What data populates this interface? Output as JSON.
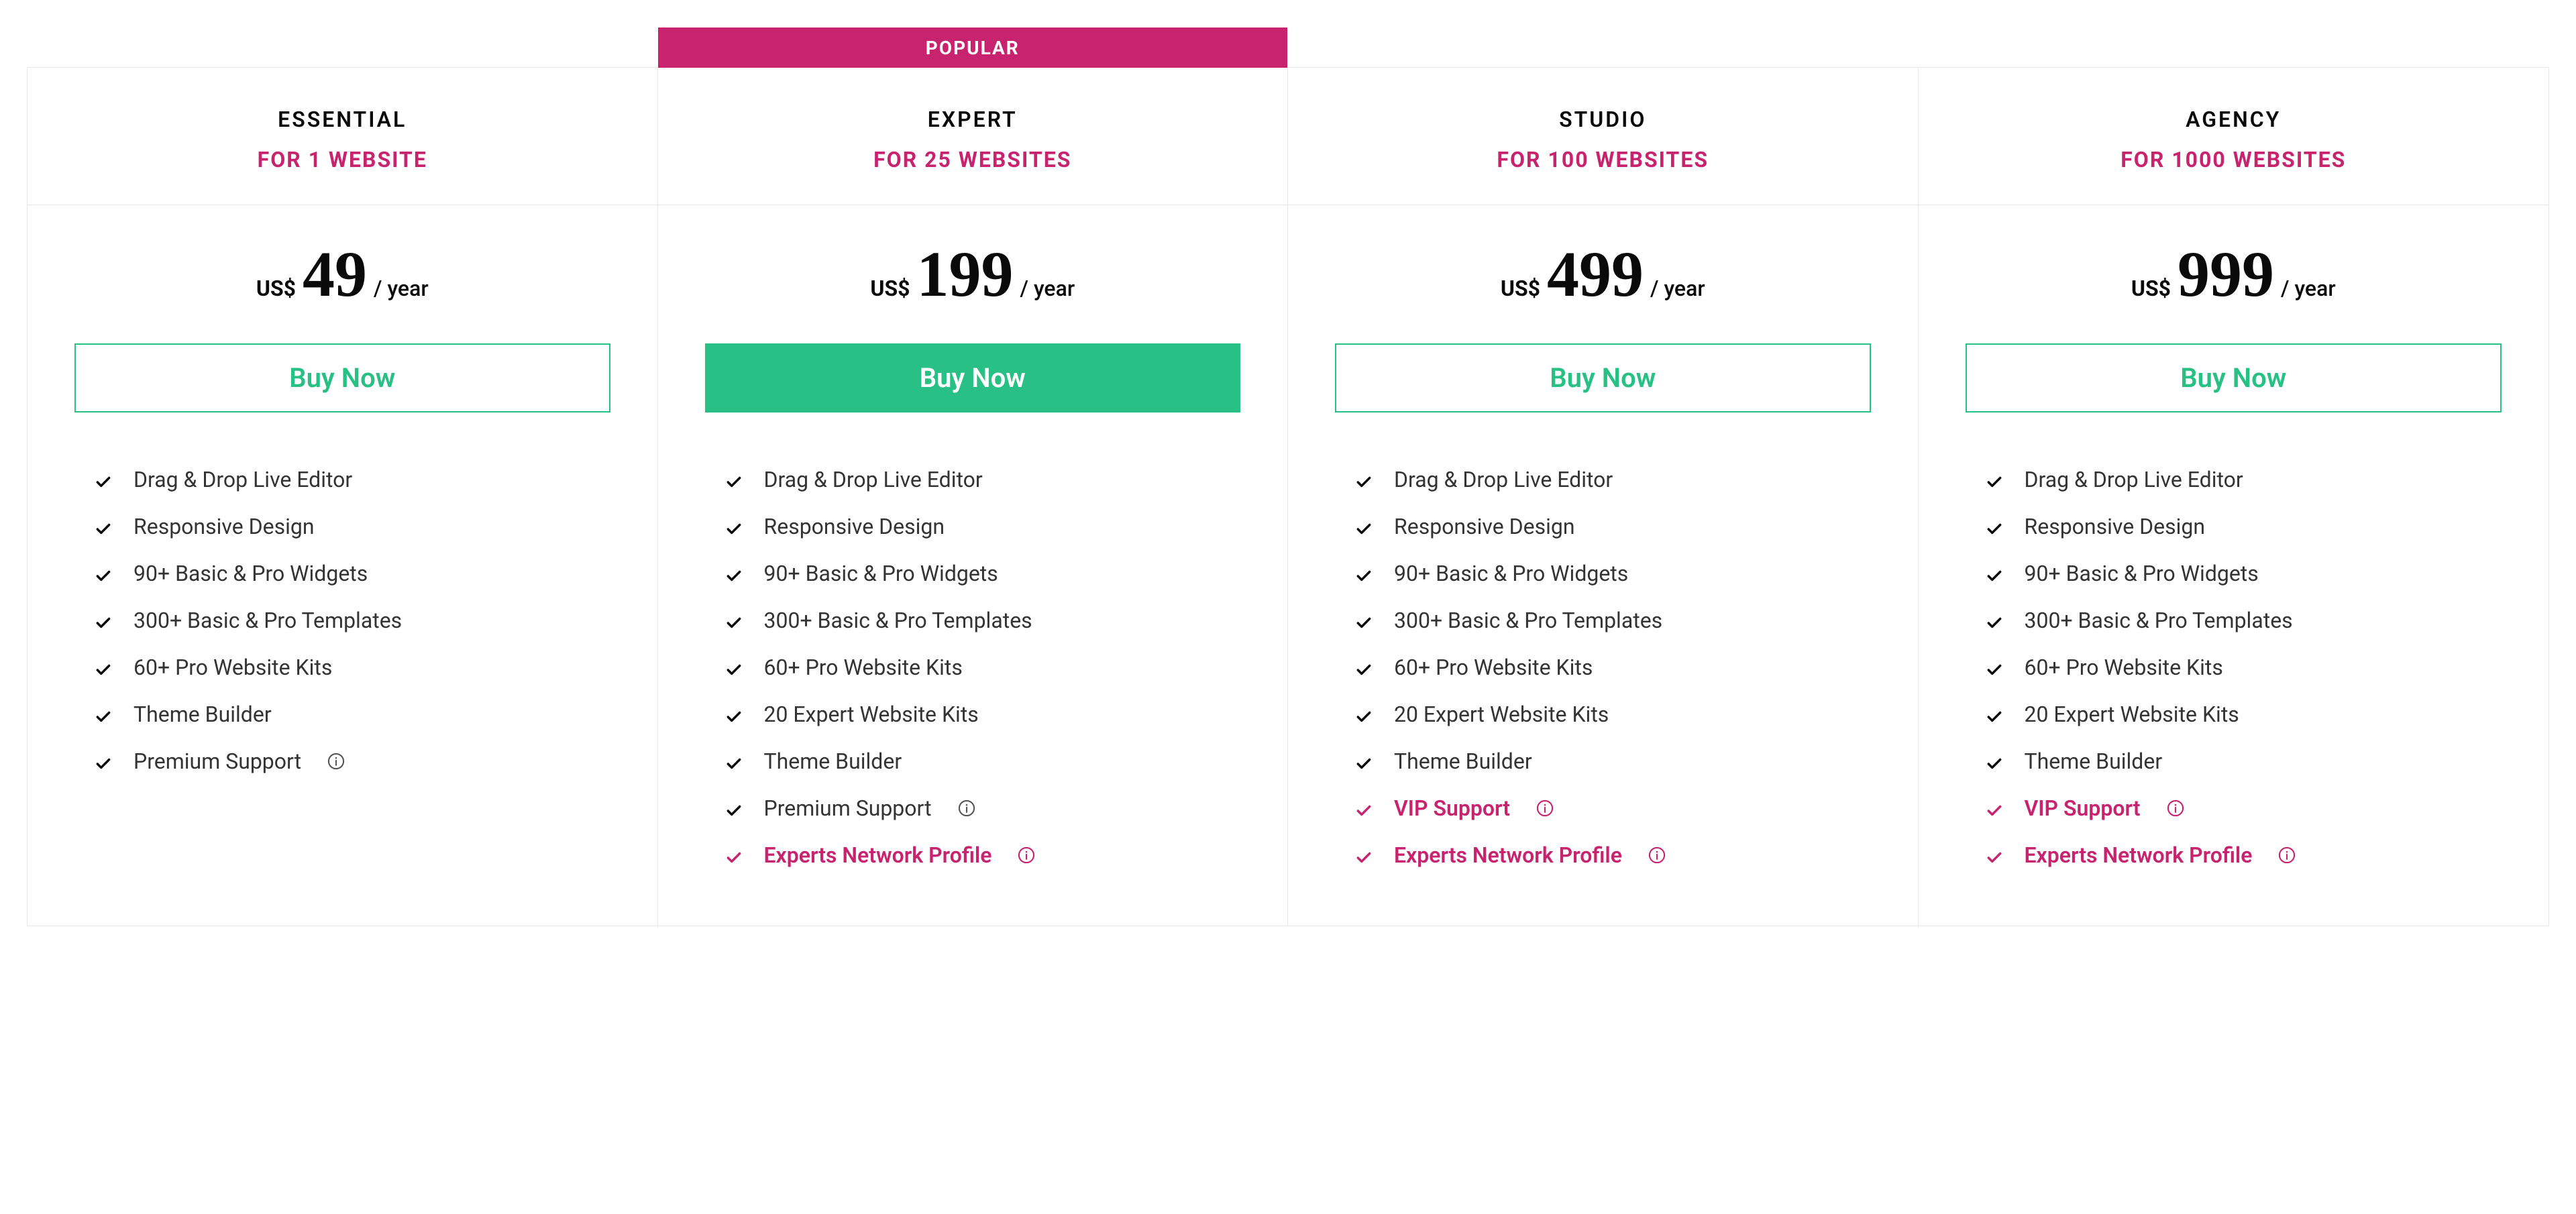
{
  "colors": {
    "accent": "#c7236f",
    "green": "#28c084",
    "border": "#e8e8e8",
    "text": "#333333",
    "dark": "#0a0a0a"
  },
  "popular_label": "POPULAR",
  "popular_index": 1,
  "currency": "US$",
  "period": "/ year",
  "buy_label": "Buy Now",
  "plans": [
    {
      "name": "ESSENTIAL",
      "subtitle": "FOR 1 WEBSITE",
      "price": "49",
      "features": [
        {
          "label": "Drag & Drop Live Editor",
          "highlight": false,
          "info": false
        },
        {
          "label": "Responsive Design",
          "highlight": false,
          "info": false
        },
        {
          "label": "90+ Basic & Pro Widgets",
          "highlight": false,
          "info": false
        },
        {
          "label": "300+ Basic & Pro Templates",
          "highlight": false,
          "info": false
        },
        {
          "label": "60+ Pro Website Kits",
          "highlight": false,
          "info": false
        },
        {
          "label": "Theme Builder",
          "highlight": false,
          "info": false
        },
        {
          "label": "Premium Support",
          "highlight": false,
          "info": true
        }
      ]
    },
    {
      "name": "EXPERT",
      "subtitle": "FOR 25 WEBSITES",
      "price": "199",
      "features": [
        {
          "label": "Drag & Drop Live Editor",
          "highlight": false,
          "info": false
        },
        {
          "label": "Responsive Design",
          "highlight": false,
          "info": false
        },
        {
          "label": "90+ Basic & Pro Widgets",
          "highlight": false,
          "info": false
        },
        {
          "label": "300+ Basic & Pro Templates",
          "highlight": false,
          "info": false
        },
        {
          "label": "60+ Pro Website Kits",
          "highlight": false,
          "info": false
        },
        {
          "label": "20 Expert Website Kits",
          "highlight": false,
          "info": false
        },
        {
          "label": "Theme Builder",
          "highlight": false,
          "info": false
        },
        {
          "label": "Premium Support",
          "highlight": false,
          "info": true
        },
        {
          "label": "Experts Network Profile",
          "highlight": true,
          "info": true
        }
      ]
    },
    {
      "name": "STUDIO",
      "subtitle": "FOR 100 WEBSITES",
      "price": "499",
      "features": [
        {
          "label": "Drag & Drop Live Editor",
          "highlight": false,
          "info": false
        },
        {
          "label": "Responsive Design",
          "highlight": false,
          "info": false
        },
        {
          "label": "90+ Basic & Pro Widgets",
          "highlight": false,
          "info": false
        },
        {
          "label": "300+ Basic & Pro Templates",
          "highlight": false,
          "info": false
        },
        {
          "label": "60+ Pro Website Kits",
          "highlight": false,
          "info": false
        },
        {
          "label": "20 Expert Website Kits",
          "highlight": false,
          "info": false
        },
        {
          "label": "Theme Builder",
          "highlight": false,
          "info": false
        },
        {
          "label": "VIP Support",
          "highlight": true,
          "info": true
        },
        {
          "label": "Experts Network Profile",
          "highlight": true,
          "info": true
        }
      ]
    },
    {
      "name": "AGENCY",
      "subtitle": "FOR 1000 WEBSITES",
      "price": "999",
      "features": [
        {
          "label": "Drag & Drop Live Editor",
          "highlight": false,
          "info": false
        },
        {
          "label": "Responsive Design",
          "highlight": false,
          "info": false
        },
        {
          "label": "90+ Basic & Pro Widgets",
          "highlight": false,
          "info": false
        },
        {
          "label": "300+ Basic & Pro Templates",
          "highlight": false,
          "info": false
        },
        {
          "label": "60+ Pro Website Kits",
          "highlight": false,
          "info": false
        },
        {
          "label": "20 Expert Website Kits",
          "highlight": false,
          "info": false
        },
        {
          "label": "Theme Builder",
          "highlight": false,
          "info": false
        },
        {
          "label": "VIP Support",
          "highlight": true,
          "info": true
        },
        {
          "label": "Experts Network Profile",
          "highlight": true,
          "info": true
        }
      ]
    }
  ]
}
